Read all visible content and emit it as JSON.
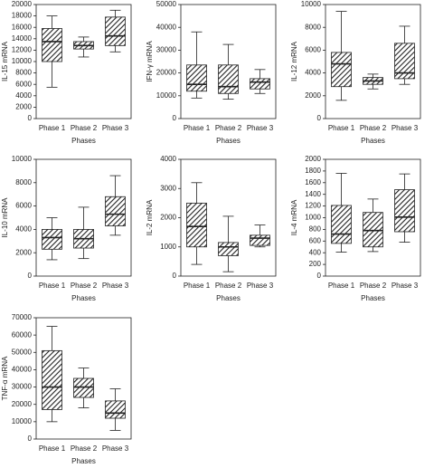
{
  "chart_data": [
    {
      "type": "box",
      "y_label": "IL-15 mRNA",
      "x_label": "Phases",
      "categories": [
        "Phase 1",
        "Phase 2",
        "Phase 3"
      ],
      "color": "#222222",
      "boxes": [
        {
          "whislo": 5500,
          "q1": 10000,
          "med": 13500,
          "q3": 15800,
          "whishi": 18000
        },
        {
          "whislo": 10800,
          "q1": 12200,
          "med": 12800,
          "q3": 13500,
          "whishi": 14300
        },
        {
          "whislo": 11700,
          "q1": 12800,
          "med": 14500,
          "q3": 17800,
          "whishi": 19000
        }
      ],
      "ylim": [
        0,
        20000
      ],
      "yticks": [
        0,
        2000,
        4000,
        6000,
        8000,
        10000,
        12000,
        14000,
        16000,
        18000,
        20000
      ]
    },
    {
      "type": "box",
      "y_label": "IFN-γ mRNA",
      "x_label": "Phases",
      "categories": [
        "Phase 1",
        "Phase 2",
        "Phase 3"
      ],
      "color": "#222222",
      "boxes": [
        {
          "whislo": 9000,
          "q1": 12000,
          "med": 15000,
          "q3": 23500,
          "whishi": 38000
        },
        {
          "whislo": 8500,
          "q1": 11000,
          "med": 14000,
          "q3": 23500,
          "whishi": 32500
        },
        {
          "whislo": 11000,
          "q1": 13000,
          "med": 16000,
          "q3": 17500,
          "whishi": 21500
        }
      ],
      "ylim": [
        0,
        50000
      ],
      "yticks": [
        0,
        10000,
        20000,
        30000,
        40000,
        50000
      ]
    },
    {
      "type": "box",
      "y_label": "IL-12 mRNA",
      "x_label": "Phases",
      "categories": [
        "Phase 1",
        "Phase 2",
        "Phase 3"
      ],
      "color": "#222222",
      "boxes": [
        {
          "whislo": 1600,
          "q1": 2800,
          "med": 4800,
          "q3": 5800,
          "whishi": 9400
        },
        {
          "whislo": 2600,
          "q1": 3000,
          "med": 3300,
          "q3": 3600,
          "whishi": 3900
        },
        {
          "whislo": 3000,
          "q1": 3500,
          "med": 4000,
          "q3": 6600,
          "whishi": 8100
        }
      ],
      "ylim": [
        0,
        10000
      ],
      "yticks": [
        0,
        2000,
        4000,
        6000,
        8000,
        10000
      ]
    },
    {
      "type": "box",
      "y_label": "IL-10 mRNA",
      "x_label": "Phases",
      "categories": [
        "Phase 1",
        "Phase 2",
        "Phase 3"
      ],
      "color": "#222222",
      "boxes": [
        {
          "whislo": 1400,
          "q1": 2300,
          "med": 3300,
          "q3": 4000,
          "whishi": 5000
        },
        {
          "whislo": 1500,
          "q1": 2400,
          "med": 3200,
          "q3": 4000,
          "whishi": 5900
        },
        {
          "whislo": 3500,
          "q1": 4300,
          "med": 5300,
          "q3": 6800,
          "whishi": 8600
        }
      ],
      "ylim": [
        0,
        10000
      ],
      "yticks": [
        0,
        2000,
        4000,
        6000,
        8000,
        10000
      ]
    },
    {
      "type": "box",
      "y_label": "IL-2 mRNA",
      "x_label": "Phases",
      "categories": [
        "Phase 1",
        "Phase 2",
        "Phase 3"
      ],
      "color": "#222222",
      "boxes": [
        {
          "whislo": 400,
          "q1": 1000,
          "med": 1700,
          "q3": 2500,
          "whishi": 3200
        },
        {
          "whislo": 150,
          "q1": 700,
          "med": 1000,
          "q3": 1150,
          "whishi": 2050
        },
        {
          "whislo": 1000,
          "q1": 1050,
          "med": 1300,
          "q3": 1400,
          "whishi": 1750
        }
      ],
      "ylim": [
        0,
        4000
      ],
      "yticks": [
        0,
        1000,
        2000,
        3000,
        4000
      ]
    },
    {
      "type": "box",
      "y_label": "IL-4 mRNA",
      "x_label": "Phases",
      "categories": [
        "Phase 1",
        "Phase 2",
        "Phase 3"
      ],
      "color": "#222222",
      "boxes": [
        {
          "whislo": 410,
          "q1": 560,
          "med": 720,
          "q3": 1210,
          "whishi": 1760
        },
        {
          "whislo": 420,
          "q1": 500,
          "med": 780,
          "q3": 1090,
          "whishi": 1320
        },
        {
          "whislo": 580,
          "q1": 760,
          "med": 1010,
          "q3": 1480,
          "whishi": 1750
        }
      ],
      "ylim": [
        0,
        2000
      ],
      "yticks": [
        0,
        200,
        400,
        600,
        800,
        1000,
        1200,
        1400,
        1600,
        1800,
        2000
      ]
    },
    {
      "type": "box",
      "y_label": "TNF-α mRNA",
      "x_label": "Phases",
      "categories": [
        "Phase 1",
        "Phase 2",
        "Phase 3"
      ],
      "color": "#222222",
      "boxes": [
        {
          "whislo": 10000,
          "q1": 17000,
          "med": 30000,
          "q3": 51000,
          "whishi": 65000
        },
        {
          "whislo": 18000,
          "q1": 24000,
          "med": 30000,
          "q3": 35000,
          "whishi": 41000
        },
        {
          "whislo": 5000,
          "q1": 12000,
          "med": 15000,
          "q3": 22000,
          "whishi": 29000
        }
      ],
      "ylim": [
        0,
        70000
      ],
      "yticks": [
        0,
        10000,
        20000,
        30000,
        40000,
        50000,
        60000,
        70000
      ]
    }
  ]
}
